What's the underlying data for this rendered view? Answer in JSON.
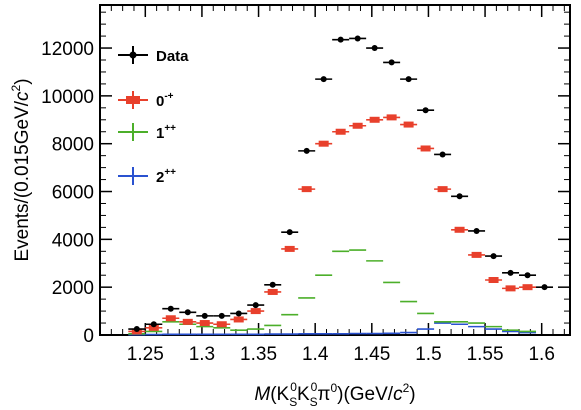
{
  "chart_data": {
    "type": "scatter",
    "title": "",
    "xlabel": "M(K_S^0 K_S^0 π^0)(GeV/c^2)",
    "ylabel": "Events/(0.015GeV/c^2)",
    "xlim": [
      1.21,
      1.625
    ],
    "ylim": [
      0,
      13800
    ],
    "x_ticks": [
      1.25,
      1.3,
      1.35,
      1.4,
      1.45,
      1.5,
      1.55,
      1.6
    ],
    "x_tick_labels": [
      "1.25",
      "1.3",
      "1.35",
      "1.4",
      "1.45",
      "1.5",
      "1.55",
      "1.6"
    ],
    "y_ticks": [
      0,
      2000,
      4000,
      6000,
      8000,
      10000,
      12000
    ],
    "y_tick_labels": [
      "0",
      "2000",
      "4000",
      "6000",
      "8000",
      "10000",
      "12000"
    ],
    "bin_width": 0.015,
    "grid": false,
    "legend_position": "top-left",
    "series": [
      {
        "name": "Data",
        "color": "#000000",
        "x": [
          1.2425,
          1.2575,
          1.2725,
          1.2875,
          1.3025,
          1.3175,
          1.3325,
          1.3475,
          1.3625,
          1.3775,
          1.3925,
          1.4075,
          1.4225,
          1.4375,
          1.4525,
          1.4675,
          1.4825,
          1.4975,
          1.5125,
          1.5275,
          1.5425,
          1.5575,
          1.5725,
          1.5875,
          1.6025
        ],
        "y": [
          250,
          450,
          1100,
          950,
          800,
          800,
          900,
          1250,
          2100,
          4300,
          7700,
          10700,
          12350,
          12400,
          12000,
          11400,
          10700,
          9400,
          7550,
          5800,
          4350,
          3300,
          2600,
          2500,
          2000
        ]
      },
      {
        "name": "0^-+",
        "color": "#e8402c",
        "x": [
          1.2425,
          1.2575,
          1.2725,
          1.2875,
          1.3025,
          1.3175,
          1.3325,
          1.3475,
          1.3625,
          1.3775,
          1.3925,
          1.4075,
          1.4225,
          1.4375,
          1.4525,
          1.4675,
          1.4825,
          1.4975,
          1.5125,
          1.5275,
          1.5425,
          1.5575,
          1.5725,
          1.5875
        ],
        "y": [
          150,
          300,
          700,
          550,
          500,
          450,
          650,
          1000,
          1800,
          3600,
          6100,
          8000,
          8500,
          8750,
          9000,
          9100,
          8800,
          7800,
          6100,
          4400,
          3350,
          2300,
          1950,
          2000
        ]
      },
      {
        "name": "1^++",
        "color": "#4caf2a",
        "x": [
          1.2425,
          1.2575,
          1.2725,
          1.2875,
          1.3025,
          1.3175,
          1.3325,
          1.3475,
          1.3625,
          1.3775,
          1.3925,
          1.4075,
          1.4225,
          1.4375,
          1.4525,
          1.4675,
          1.4825,
          1.4975,
          1.5125,
          1.5275,
          1.5425,
          1.5575,
          1.5725,
          1.5875
        ],
        "y": [
          50,
          150,
          550,
          450,
          350,
          300,
          200,
          250,
          400,
          850,
          1550,
          2500,
          3500,
          3550,
          3100,
          2200,
          1400,
          900,
          550,
          550,
          500,
          350,
          200,
          150
        ]
      },
      {
        "name": "2^++",
        "color": "#2a52d0",
        "x": [
          1.2425,
          1.2575,
          1.2725,
          1.2875,
          1.3025,
          1.3175,
          1.3325,
          1.3475,
          1.3625,
          1.3775,
          1.3925,
          1.4075,
          1.4225,
          1.4375,
          1.4525,
          1.4675,
          1.4825,
          1.4975,
          1.5125,
          1.5275,
          1.5425,
          1.5575,
          1.5725,
          1.5875
        ],
        "y": [
          10,
          20,
          30,
          30,
          30,
          30,
          30,
          30,
          40,
          40,
          50,
          50,
          50,
          60,
          60,
          70,
          100,
          250,
          500,
          450,
          350,
          250,
          150,
          100
        ]
      }
    ]
  },
  "legend": [
    {
      "label": "Data",
      "color": "#000000"
    },
    {
      "label": "0",
      "sup": "-+",
      "color": "#e8402c"
    },
    {
      "label": "1",
      "sup": "++",
      "color": "#4caf2a"
    },
    {
      "label": "2",
      "sup": "++",
      "color": "#2a52d0"
    }
  ]
}
